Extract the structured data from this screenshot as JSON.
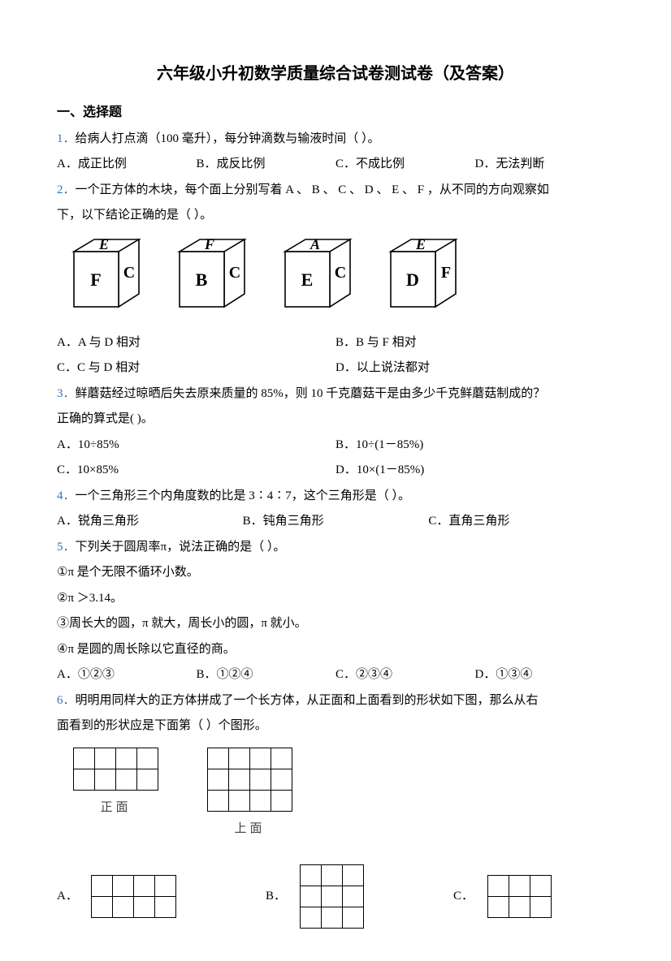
{
  "title": "六年级小升初数学质量综合试卷测试卷（及答案）",
  "section1": "一、选择题",
  "q1": {
    "num": "1．",
    "text": "给病人打点滴（100  毫升），每分钟滴数与输液时间（         ）。",
    "A": "A．成正比例",
    "B": "B．成反比例",
    "C": "C．不成比例",
    "D": "D．无法判断"
  },
  "q2": {
    "num": "2．",
    "text1": "一个正方体的木块，每个面上分别写着 A 、 B  、 C 、 D 、 E  、 F ，从不同的方向观察如",
    "text2": "下，以下结论正确的是（        ）。",
    "cubes": [
      {
        "top": "E",
        "front": "F",
        "right": "C"
      },
      {
        "top": "F",
        "front": "B",
        "right": "C"
      },
      {
        "top": "A",
        "front": "E",
        "right": "C"
      },
      {
        "top": "E",
        "front": "D",
        "right": "F"
      }
    ],
    "A": "A．A 与 D 相对",
    "B": "B．B  与 F  相对",
    "C": "C．C 与 D 相对",
    "D": "D．以上说法都对"
  },
  "q3": {
    "num": "3．",
    "text1": "鲜蘑菇经过晾晒后失去原来质量的 85%，则 10 千克蘑菇干是由多少千克鲜蘑菇制成的？",
    "text2": "正确的算式是(        )。",
    "A": "A．10÷85%",
    "B": "B．10÷(1－85%)",
    "C": "C．10×85%",
    "D": "D．10×(1－85%)"
  },
  "q4": {
    "num": "4．",
    "text": "一个三角形三个内角度数的比是 3∶4∶7，这个三角形是（        ）。",
    "A": "A．锐角三角形",
    "B": "B．钝角三角形",
    "C": "C．直角三角形"
  },
  "q5": {
    "num": "5．",
    "text": "下列关于圆周率π，说法正确的是（        ）。",
    "s1": "①π 是个无限不循环小数。",
    "s2": "②π ＞3.14。",
    "s3": "③周长大的圆，π 就大，周长小的圆，π 就小。",
    "s4": "④π 是圆的周长除以它直径的商。",
    "A": "A．①②③",
    "B": "B．①②④",
    "C": "C．②③④",
    "D": "D．①③④"
  },
  "q6": {
    "num": "6．",
    "text1": "明明用同样大的正方体拼成了一个长方体，从正面和上面看到的形状如下图，那么从右",
    "text2": "面看到的形状应是下面第（         ）个图形。",
    "front_label": "正面",
    "top_label": "上面",
    "front_grid": {
      "rows": 2,
      "cols": 4
    },
    "top_grid": {
      "rows": 3,
      "cols": 4
    },
    "optA": {
      "label": "A．",
      "rows": 2,
      "cols": 4
    },
    "optB": {
      "label": "B．",
      "rows": 3,
      "cols": 3
    },
    "optC": {
      "label": "C．",
      "rows": 2,
      "cols": 3
    }
  },
  "style": {
    "num_color": "#2e74b5",
    "text_color": "#000000",
    "background": "#ffffff",
    "title_fontsize": 20,
    "body_fontsize": 15,
    "line_height": 2.1,
    "cube_line_color": "#000000",
    "cube_fill": "#ffffff"
  }
}
